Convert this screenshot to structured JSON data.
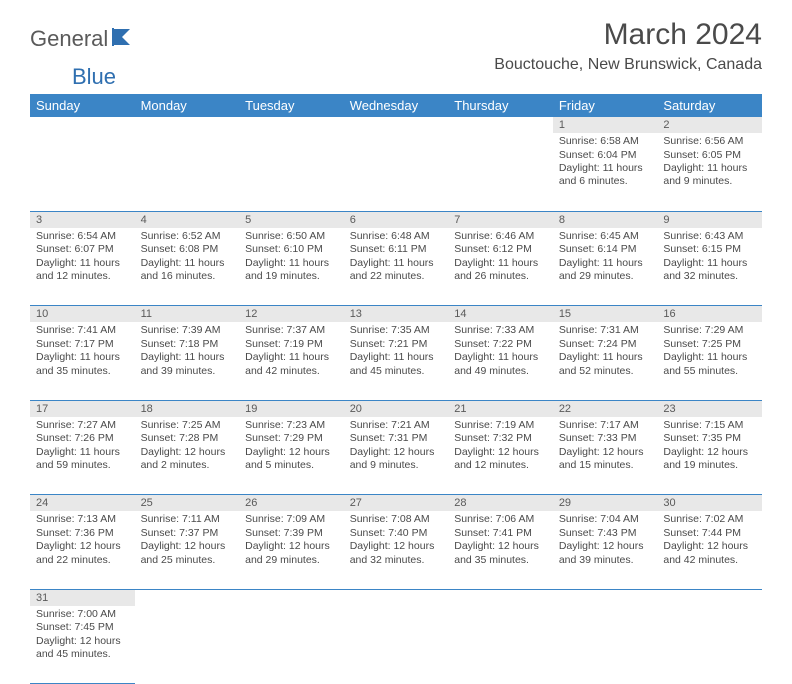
{
  "logo": {
    "word1": "General",
    "word2": "Blue"
  },
  "title": "March 2024",
  "location": "Bouctouche, New Brunswick, Canada",
  "colors": {
    "header_bg": "#3b85c6",
    "header_text": "#ffffff",
    "daynum_bg": "#e8e8e8",
    "border": "#3b85c6",
    "text": "#4a4a4a",
    "logo_blue": "#2f6fb0"
  },
  "day_headers": [
    "Sunday",
    "Monday",
    "Tuesday",
    "Wednesday",
    "Thursday",
    "Friday",
    "Saturday"
  ],
  "weeks": [
    [
      null,
      null,
      null,
      null,
      null,
      {
        "n": "1",
        "sr": "6:58 AM",
        "ss": "6:04 PM",
        "dl": "11 hours and 6 minutes."
      },
      {
        "n": "2",
        "sr": "6:56 AM",
        "ss": "6:05 PM",
        "dl": "11 hours and 9 minutes."
      }
    ],
    [
      {
        "n": "3",
        "sr": "6:54 AM",
        "ss": "6:07 PM",
        "dl": "11 hours and 12 minutes."
      },
      {
        "n": "4",
        "sr": "6:52 AM",
        "ss": "6:08 PM",
        "dl": "11 hours and 16 minutes."
      },
      {
        "n": "5",
        "sr": "6:50 AM",
        "ss": "6:10 PM",
        "dl": "11 hours and 19 minutes."
      },
      {
        "n": "6",
        "sr": "6:48 AM",
        "ss": "6:11 PM",
        "dl": "11 hours and 22 minutes."
      },
      {
        "n": "7",
        "sr": "6:46 AM",
        "ss": "6:12 PM",
        "dl": "11 hours and 26 minutes."
      },
      {
        "n": "8",
        "sr": "6:45 AM",
        "ss": "6:14 PM",
        "dl": "11 hours and 29 minutes."
      },
      {
        "n": "9",
        "sr": "6:43 AM",
        "ss": "6:15 PM",
        "dl": "11 hours and 32 minutes."
      }
    ],
    [
      {
        "n": "10",
        "sr": "7:41 AM",
        "ss": "7:17 PM",
        "dl": "11 hours and 35 minutes."
      },
      {
        "n": "11",
        "sr": "7:39 AM",
        "ss": "7:18 PM",
        "dl": "11 hours and 39 minutes."
      },
      {
        "n": "12",
        "sr": "7:37 AM",
        "ss": "7:19 PM",
        "dl": "11 hours and 42 minutes."
      },
      {
        "n": "13",
        "sr": "7:35 AM",
        "ss": "7:21 PM",
        "dl": "11 hours and 45 minutes."
      },
      {
        "n": "14",
        "sr": "7:33 AM",
        "ss": "7:22 PM",
        "dl": "11 hours and 49 minutes."
      },
      {
        "n": "15",
        "sr": "7:31 AM",
        "ss": "7:24 PM",
        "dl": "11 hours and 52 minutes."
      },
      {
        "n": "16",
        "sr": "7:29 AM",
        "ss": "7:25 PM",
        "dl": "11 hours and 55 minutes."
      }
    ],
    [
      {
        "n": "17",
        "sr": "7:27 AM",
        "ss": "7:26 PM",
        "dl": "11 hours and 59 minutes."
      },
      {
        "n": "18",
        "sr": "7:25 AM",
        "ss": "7:28 PM",
        "dl": "12 hours and 2 minutes."
      },
      {
        "n": "19",
        "sr": "7:23 AM",
        "ss": "7:29 PM",
        "dl": "12 hours and 5 minutes."
      },
      {
        "n": "20",
        "sr": "7:21 AM",
        "ss": "7:31 PM",
        "dl": "12 hours and 9 minutes."
      },
      {
        "n": "21",
        "sr": "7:19 AM",
        "ss": "7:32 PM",
        "dl": "12 hours and 12 minutes."
      },
      {
        "n": "22",
        "sr": "7:17 AM",
        "ss": "7:33 PM",
        "dl": "12 hours and 15 minutes."
      },
      {
        "n": "23",
        "sr": "7:15 AM",
        "ss": "7:35 PM",
        "dl": "12 hours and 19 minutes."
      }
    ],
    [
      {
        "n": "24",
        "sr": "7:13 AM",
        "ss": "7:36 PM",
        "dl": "12 hours and 22 minutes."
      },
      {
        "n": "25",
        "sr": "7:11 AM",
        "ss": "7:37 PM",
        "dl": "12 hours and 25 minutes."
      },
      {
        "n": "26",
        "sr": "7:09 AM",
        "ss": "7:39 PM",
        "dl": "12 hours and 29 minutes."
      },
      {
        "n": "27",
        "sr": "7:08 AM",
        "ss": "7:40 PM",
        "dl": "12 hours and 32 minutes."
      },
      {
        "n": "28",
        "sr": "7:06 AM",
        "ss": "7:41 PM",
        "dl": "12 hours and 35 minutes."
      },
      {
        "n": "29",
        "sr": "7:04 AM",
        "ss": "7:43 PM",
        "dl": "12 hours and 39 minutes."
      },
      {
        "n": "30",
        "sr": "7:02 AM",
        "ss": "7:44 PM",
        "dl": "12 hours and 42 minutes."
      }
    ],
    [
      {
        "n": "31",
        "sr": "7:00 AM",
        "ss": "7:45 PM",
        "dl": "12 hours and 45 minutes."
      },
      null,
      null,
      null,
      null,
      null,
      null
    ]
  ],
  "labels": {
    "sunrise": "Sunrise:",
    "sunset": "Sunset:",
    "daylight": "Daylight:"
  }
}
